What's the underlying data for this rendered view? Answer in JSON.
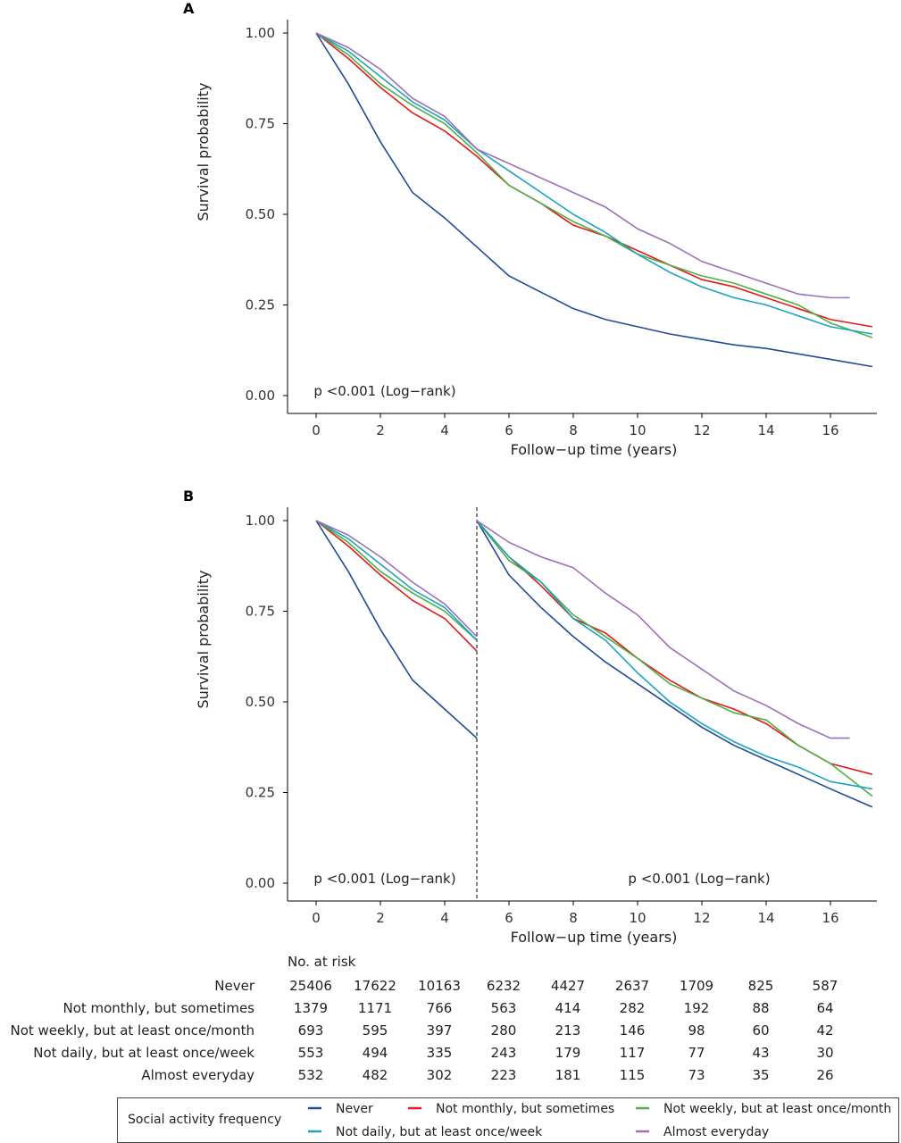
{
  "colors": {
    "Never": "#1f4a96",
    "Not monthly, but sometimes": "#e3191c",
    "Not weekly, but at least once/month": "#4cb046",
    "Not daily, but at least once/week": "#1aa3c1",
    "Almost everyday": "#9c6fb8"
  },
  "chart_data": [
    {
      "type": "line",
      "panel_label": "A",
      "xlabel": "Follow−up time (years)",
      "ylabel": "Survival probability",
      "xlim": [
        0,
        17.3
      ],
      "ylim": [
        0,
        1
      ],
      "xticks": [
        0,
        2,
        4,
        6,
        8,
        10,
        12,
        14,
        16
      ],
      "yticks": [
        "0.00",
        "0.25",
        "0.50",
        "0.75",
        "1.00"
      ],
      "annotations": [
        {
          "text": "p <0.001 (Log−rank)"
        }
      ],
      "series": [
        {
          "name": "Never",
          "x": [
            0,
            1,
            2,
            3,
            4,
            5,
            6,
            7,
            8,
            9,
            10,
            11,
            12,
            13,
            14,
            15,
            16,
            17.3
          ],
          "y": [
            1,
            0.86,
            0.7,
            0.56,
            0.49,
            0.41,
            0.33,
            0.285,
            0.24,
            0.21,
            0.19,
            0.17,
            0.155,
            0.14,
            0.13,
            0.115,
            0.1,
            0.08
          ]
        },
        {
          "name": "Not monthly, but sometimes",
          "x": [
            0,
            1,
            2,
            3,
            4,
            5,
            6,
            7,
            8,
            9,
            10,
            11,
            12,
            13,
            14,
            15,
            16,
            17.3
          ],
          "y": [
            1,
            0.93,
            0.85,
            0.78,
            0.73,
            0.66,
            0.58,
            0.53,
            0.47,
            0.44,
            0.4,
            0.36,
            0.32,
            0.3,
            0.27,
            0.24,
            0.21,
            0.19
          ]
        },
        {
          "name": "Not weekly, but at least once/month",
          "x": [
            0,
            1,
            2,
            3,
            4,
            5,
            6,
            7,
            8,
            9,
            10,
            11,
            12,
            13,
            14,
            15,
            16,
            17.3
          ],
          "y": [
            1,
            0.94,
            0.86,
            0.8,
            0.75,
            0.67,
            0.58,
            0.53,
            0.48,
            0.44,
            0.39,
            0.36,
            0.33,
            0.31,
            0.28,
            0.25,
            0.2,
            0.16
          ]
        },
        {
          "name": "Not daily, but at least once/week",
          "x": [
            0,
            1,
            2,
            3,
            4,
            5,
            6,
            7,
            8,
            9,
            10,
            11,
            12,
            13,
            14,
            15,
            16,
            17.3
          ],
          "y": [
            1,
            0.95,
            0.88,
            0.81,
            0.76,
            0.68,
            0.62,
            0.56,
            0.5,
            0.45,
            0.39,
            0.34,
            0.3,
            0.27,
            0.25,
            0.22,
            0.19,
            0.17
          ]
        },
        {
          "name": "Almost everyday",
          "x": [
            0,
            1,
            2,
            3,
            4,
            5,
            6,
            7,
            8,
            9,
            10,
            11,
            12,
            13,
            14,
            15,
            16,
            16.6
          ],
          "y": [
            1,
            0.96,
            0.9,
            0.82,
            0.77,
            0.68,
            0.64,
            0.6,
            0.56,
            0.52,
            0.46,
            0.42,
            0.37,
            0.34,
            0.31,
            0.28,
            0.27,
            0.27
          ]
        }
      ]
    },
    {
      "type": "line",
      "panel_label": "B",
      "xlabel": "Follow−up time (years)",
      "ylabel": "Survival probability",
      "xlim": [
        0,
        17.3
      ],
      "ylim": [
        0,
        1
      ],
      "xticks": [
        0,
        2,
        4,
        6,
        8,
        10,
        12,
        14,
        16
      ],
      "yticks": [
        "0.00",
        "0.25",
        "0.50",
        "0.75",
        "1.00"
      ],
      "landmark_x": 5,
      "annotations": [
        {
          "text": "p <0.001 (Log−rank)"
        },
        {
          "text": "p <0.001 (Log−rank)"
        }
      ],
      "series": [
        {
          "name": "Never",
          "x": [
            0,
            1,
            2,
            3,
            4,
            5,
            5,
            6,
            7,
            8,
            9,
            10,
            11,
            12,
            13,
            14,
            15,
            16,
            17.3
          ],
          "y": [
            1,
            0.86,
            0.7,
            0.56,
            0.48,
            0.4,
            1,
            0.85,
            0.76,
            0.68,
            0.61,
            0.55,
            0.49,
            0.43,
            0.38,
            0.34,
            0.3,
            0.26,
            0.21
          ]
        },
        {
          "name": "Not monthly, but sometimes",
          "x": [
            0,
            1,
            2,
            3,
            4,
            5,
            5,
            6,
            7,
            8,
            9,
            10,
            11,
            12,
            13,
            14,
            15,
            16,
            17.3
          ],
          "y": [
            1,
            0.93,
            0.85,
            0.78,
            0.73,
            0.64,
            1,
            0.9,
            0.82,
            0.73,
            0.69,
            0.62,
            0.56,
            0.51,
            0.48,
            0.44,
            0.38,
            0.33,
            0.3
          ]
        },
        {
          "name": "Not weekly, but at least once/month",
          "x": [
            0,
            1,
            2,
            3,
            4,
            5,
            5,
            6,
            7,
            8,
            9,
            10,
            11,
            12,
            13,
            14,
            15,
            16,
            17.3
          ],
          "y": [
            1,
            0.94,
            0.86,
            0.8,
            0.75,
            0.67,
            1,
            0.89,
            0.83,
            0.74,
            0.68,
            0.62,
            0.55,
            0.51,
            0.47,
            0.45,
            0.38,
            0.33,
            0.24
          ]
        },
        {
          "name": "Not daily, but at least once/week",
          "x": [
            0,
            1,
            2,
            3,
            4,
            5,
            5,
            6,
            7,
            8,
            9,
            10,
            11,
            12,
            13,
            14,
            15,
            16,
            17.3
          ],
          "y": [
            1,
            0.95,
            0.88,
            0.81,
            0.76,
            0.67,
            1,
            0.9,
            0.83,
            0.73,
            0.67,
            0.58,
            0.5,
            0.44,
            0.39,
            0.35,
            0.32,
            0.28,
            0.26
          ]
        },
        {
          "name": "Almost everyday",
          "x": [
            0,
            1,
            2,
            3,
            4,
            5,
            5,
            6,
            7,
            8,
            9,
            10,
            11,
            12,
            13,
            14,
            15,
            16,
            16.6
          ],
          "y": [
            1,
            0.96,
            0.9,
            0.83,
            0.77,
            0.68,
            1,
            0.94,
            0.9,
            0.87,
            0.8,
            0.74,
            0.65,
            0.59,
            0.53,
            0.49,
            0.44,
            0.4,
            0.4
          ]
        }
      ]
    },
    {
      "type": "table",
      "title": "No. at risk",
      "columns_years": [
        0,
        2,
        4,
        6,
        8,
        10,
        12,
        14,
        16
      ],
      "rows": [
        {
          "label": "Never",
          "values": [
            "25406",
            "17622",
            "10163",
            "6232",
            "4427",
            "2637",
            "1709",
            "825",
            "587"
          ]
        },
        {
          "label": "Not monthly, but sometimes",
          "values": [
            "1379",
            "1171",
            "766",
            "563",
            "414",
            "282",
            "192",
            "88",
            "64"
          ]
        },
        {
          "label": "Not weekly, but at least once/month",
          "values": [
            "693",
            "595",
            "397",
            "280",
            "213",
            "146",
            "98",
            "60",
            "42"
          ]
        },
        {
          "label": "Not daily, but at least once/week",
          "values": [
            "553",
            "494",
            "335",
            "243",
            "179",
            "117",
            "77",
            "43",
            "30"
          ]
        },
        {
          "label": "Almost everyday",
          "values": [
            "532",
            "482",
            "302",
            "223",
            "181",
            "115",
            "73",
            "35",
            "26"
          ]
        }
      ]
    }
  ],
  "legend": {
    "title": "Social activity frequency",
    "placement": "bottom",
    "items": [
      "Never",
      "Not monthly, but sometimes",
      "Not weekly, but at least once/month",
      "Not daily, but at least once/week",
      "Almost everyday"
    ]
  }
}
